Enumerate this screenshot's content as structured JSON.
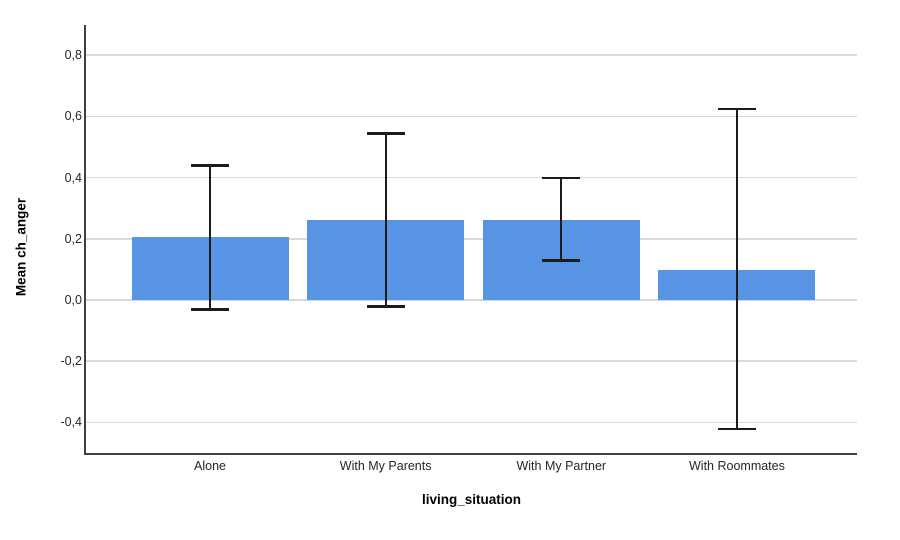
{
  "chart_data": {
    "type": "bar",
    "title": "",
    "xlabel": "living_situation",
    "ylabel": "Mean ch_anger",
    "categories": [
      "Alone",
      "With My Parents",
      "With My Partner",
      "With Roommates"
    ],
    "values": [
      0.205,
      0.263,
      0.263,
      0.099
    ],
    "error_bars": [
      {
        "low": -0.03,
        "high": 0.44
      },
      {
        "low": -0.02,
        "high": 0.545
      },
      {
        "low": 0.13,
        "high": 0.4
      },
      {
        "low": -0.42,
        "high": 0.625
      }
    ],
    "y_ticks": [
      {
        "value": 0.8,
        "label": "0,8"
      },
      {
        "value": 0.6,
        "label": "0,6"
      },
      {
        "value": 0.4,
        "label": "0,4"
      },
      {
        "value": 0.2,
        "label": "0,2"
      },
      {
        "value": 0.0,
        "label": "0,0"
      },
      {
        "value": -0.2,
        "label": "-0,2"
      },
      {
        "value": -0.4,
        "label": "-0,4"
      }
    ],
    "ylim": [
      -0.5,
      0.9
    ],
    "grid": true,
    "legend": "none",
    "decimal_separator": ",",
    "colors": {
      "bar": "#5794E4",
      "grid": "#d9d9d9",
      "axis": "#3f3f3f",
      "error_bar": "#1c1c1c",
      "text": "#262626",
      "background": "#ffffff"
    }
  }
}
